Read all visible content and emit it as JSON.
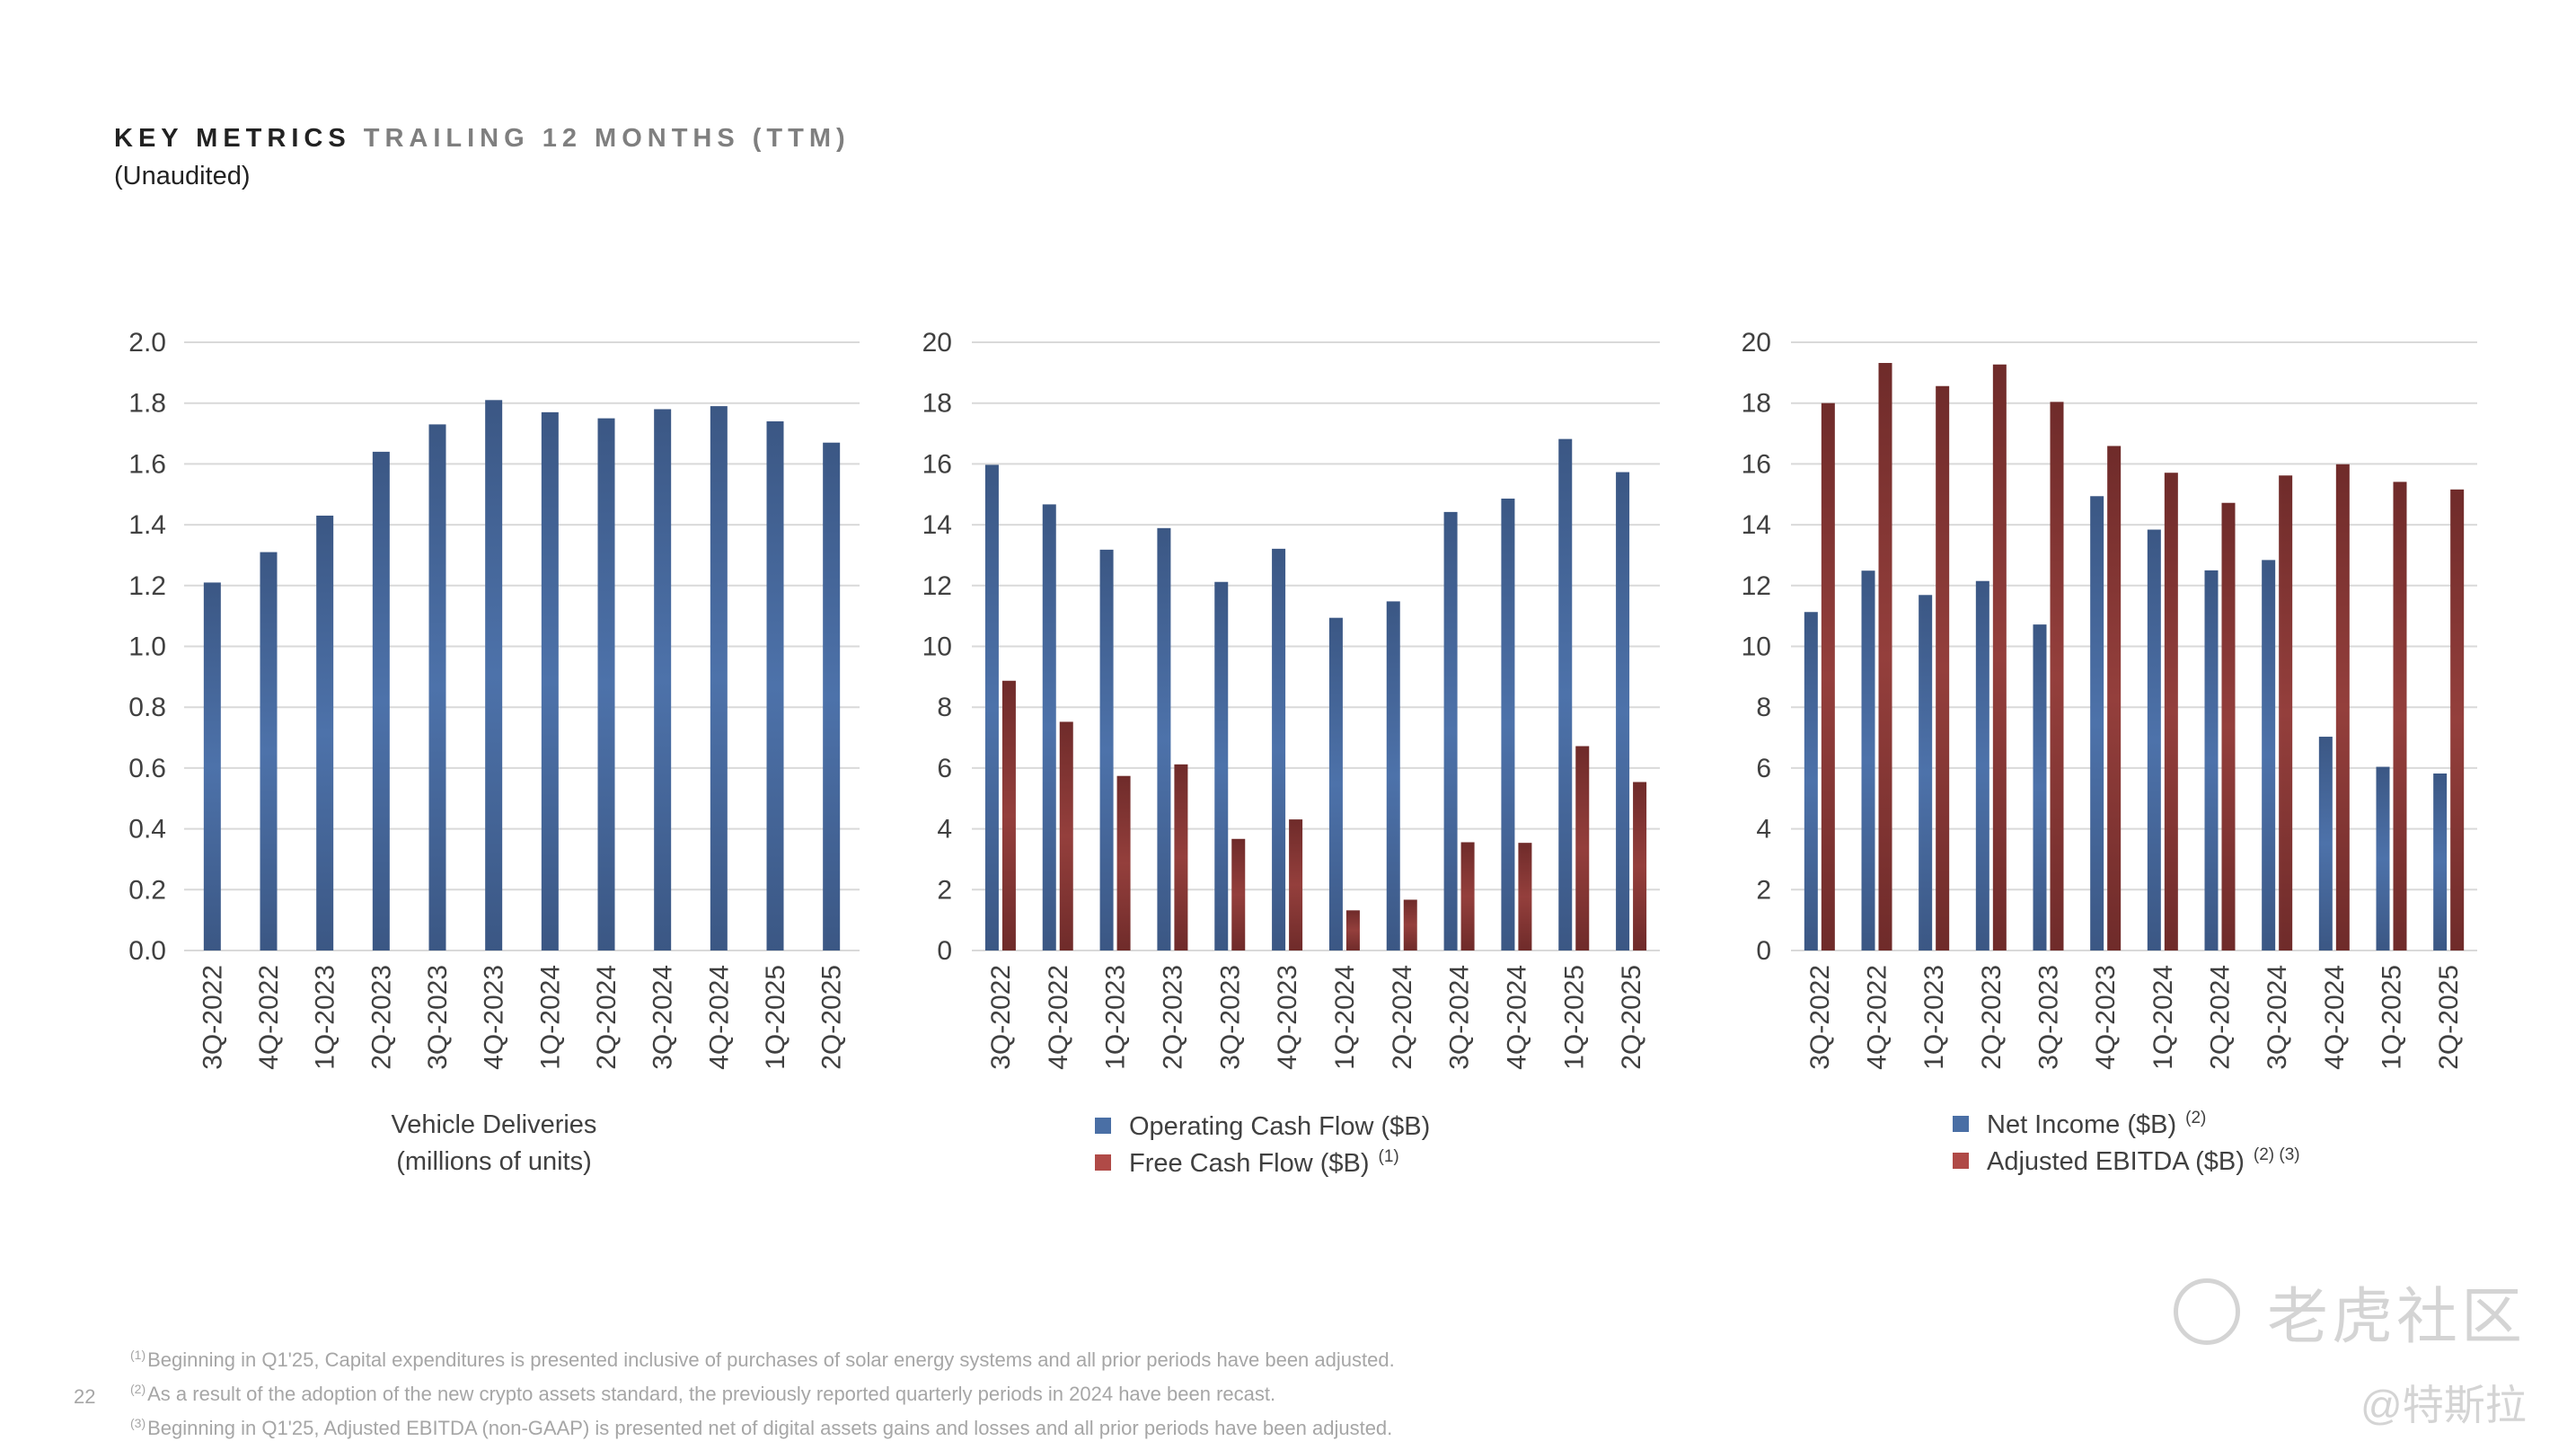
{
  "header": {
    "title_bold": "KEY METRICS",
    "title_light": "TRAILING 12 MONTHS (TTM)",
    "subtitle": "(Unaudited)"
  },
  "colors": {
    "blue": "#4a6fa5",
    "red": "#8b3a38",
    "grid": "#d9d9d9"
  },
  "chart_data": [
    {
      "type": "bar",
      "categories": [
        "3Q-2022",
        "4Q-2022",
        "1Q-2023",
        "2Q-2023",
        "3Q-2023",
        "4Q-2023",
        "1Q-2024",
        "2Q-2024",
        "3Q-2024",
        "4Q-2024",
        "1Q-2025",
        "2Q-2025"
      ],
      "series": [
        {
          "values": [
            1.21,
            1.31,
            1.43,
            1.64,
            1.73,
            1.81,
            1.77,
            1.75,
            1.78,
            1.79,
            1.74,
            1.67
          ],
          "color": "#4a6fa5"
        }
      ],
      "xlabel": "Vehicle Deliveries",
      "xlabel2": "(millions of units)",
      "ylim": [
        0,
        2.0
      ],
      "yticks": [
        "0.0",
        "0.2",
        "0.4",
        "0.6",
        "0.8",
        "1.0",
        "1.2",
        "1.4",
        "1.6",
        "1.8",
        "2.0"
      ],
      "grid": true
    },
    {
      "type": "bar",
      "categories": [
        "3Q-2022",
        "4Q-2022",
        "1Q-2023",
        "2Q-2023",
        "3Q-2023",
        "4Q-2023",
        "1Q-2024",
        "2Q-2024",
        "3Q-2024",
        "4Q-2024",
        "1Q-2025",
        "2Q-2025"
      ],
      "series": [
        {
          "name": "Operating Cash Flow ($B)",
          "note": "",
          "values": [
            15.97,
            14.67,
            13.18,
            13.89,
            12.12,
            13.21,
            10.94,
            11.48,
            14.42,
            14.86,
            16.82,
            15.73
          ],
          "color": "#4a6fa5"
        },
        {
          "name": "Free Cash Flow ($B)",
          "note": "(1)",
          "values": [
            8.87,
            7.52,
            5.74,
            6.12,
            3.67,
            4.31,
            1.32,
            1.67,
            3.56,
            3.54,
            6.72,
            5.54
          ],
          "color": "#8b3a38"
        }
      ],
      "ylim": [
        0,
        20
      ],
      "yticks": [
        "0",
        "2",
        "4",
        "6",
        "8",
        "10",
        "12",
        "14",
        "16",
        "18",
        "20"
      ],
      "legend": "bottom",
      "grid": true
    },
    {
      "type": "bar",
      "categories": [
        "3Q-2022",
        "4Q-2022",
        "1Q-2023",
        "2Q-2023",
        "3Q-2023",
        "4Q-2023",
        "1Q-2024",
        "2Q-2024",
        "3Q-2024",
        "4Q-2024",
        "1Q-2025",
        "2Q-2025"
      ],
      "series": [
        {
          "name": "Net Income ($B)",
          "note": "(2)",
          "values": [
            11.13,
            12.49,
            11.69,
            12.15,
            10.72,
            14.94,
            13.84,
            12.5,
            12.84,
            7.03,
            6.04,
            5.82
          ],
          "color": "#4a6fa5"
        },
        {
          "name": "Adjusted EBITDA ($B)",
          "note": "(2) (3)",
          "values": [
            18.0,
            19.32,
            18.56,
            19.27,
            18.04,
            16.59,
            15.71,
            14.72,
            15.62,
            15.99,
            15.41,
            15.16
          ],
          "color": "#8b3a38"
        }
      ],
      "ylim": [
        0,
        20
      ],
      "yticks": [
        "0",
        "2",
        "4",
        "6",
        "8",
        "10",
        "12",
        "14",
        "16",
        "18",
        "20"
      ],
      "legend": "bottom",
      "grid": true
    }
  ],
  "footnotes": [
    {
      "mark": "(1)",
      "text": "Beginning in Q1'25, Capital expenditures is presented inclusive of purchases of solar energy systems and all prior periods have been adjusted."
    },
    {
      "mark": "(2)",
      "text": "As a result of the adoption of the new crypto assets standard, the previously reported quarterly periods in 2024 have been recast."
    },
    {
      "mark": "(3)",
      "text": "Beginning in Q1'25, Adjusted EBITDA (non-GAAP) is presented net of digital assets gains and losses and all prior periods have been adjusted."
    }
  ],
  "page_number": "22",
  "watermark": {
    "logo_text": "老虎社区",
    "handle": "@特斯拉"
  }
}
